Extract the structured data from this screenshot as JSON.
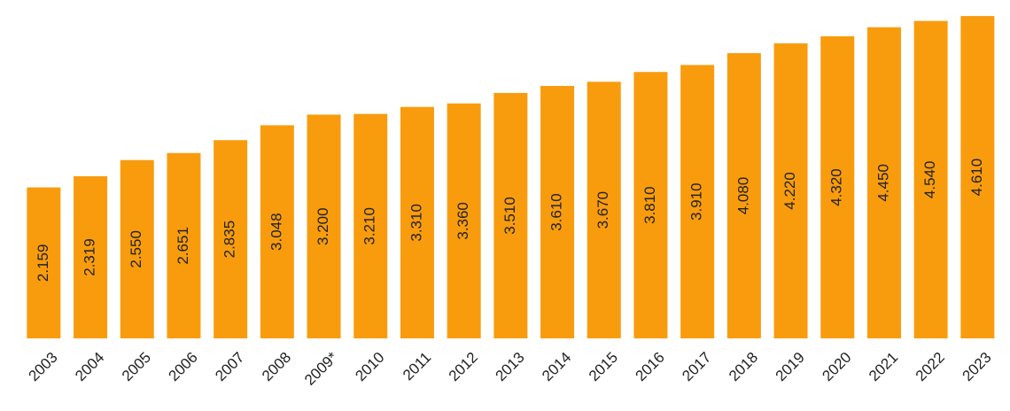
{
  "chart_data": {
    "type": "bar",
    "categories": [
      "2003",
      "2004",
      "2005",
      "2006",
      "2007",
      "2008",
      "2009*",
      "2010",
      "2011",
      "2012",
      "2013",
      "2014",
      "2015",
      "2016",
      "2017",
      "2018",
      "2019",
      "2020",
      "2021",
      "2022",
      "2023"
    ],
    "values": [
      2159,
      2319,
      2550,
      2651,
      2835,
      3048,
      3200,
      3210,
      3310,
      3360,
      3510,
      3610,
      3670,
      3810,
      3910,
      4080,
      4220,
      4320,
      4450,
      4540,
      4610
    ],
    "value_labels": [
      "2.159",
      "2.319",
      "2.550",
      "2.651",
      "2.835",
      "3.048",
      "3.200",
      "3.210",
      "3.310",
      "3.360",
      "3.510",
      "3.610",
      "3.670",
      "3.810",
      "3.910",
      "4.080",
      "4.220",
      "4.320",
      "4.450",
      "4.540",
      "4.610"
    ],
    "color": "#f89c0e",
    "ylim": [
      0,
      4700
    ]
  }
}
